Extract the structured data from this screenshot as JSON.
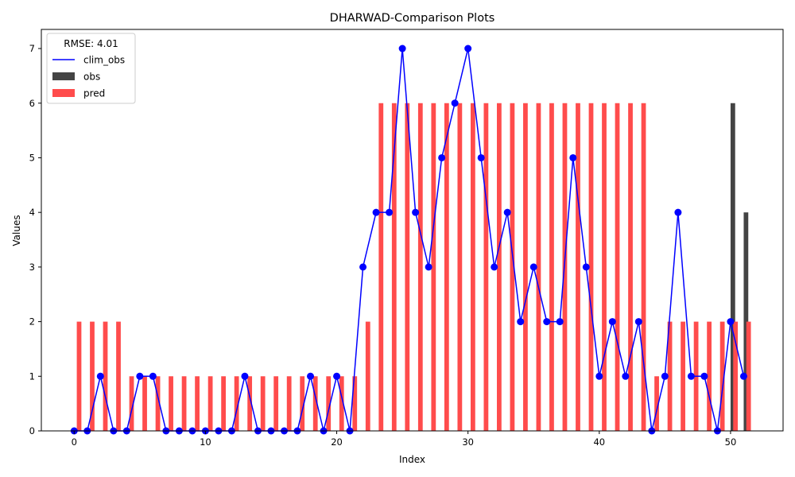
{
  "chart_data": {
    "type": "bar",
    "title": "DHARWAD-Comparison Plots",
    "xlabel": "Index",
    "ylabel": "Values",
    "xlim": [
      -2.5,
      54
    ],
    "ylim": [
      0,
      7.35
    ],
    "x_ticks": [
      0,
      10,
      20,
      30,
      40,
      50
    ],
    "y_ticks": [
      0,
      1,
      2,
      3,
      4,
      5,
      6,
      7
    ],
    "grid": false,
    "legend": {
      "title": "RMSE: 4.01",
      "placement": "top-left",
      "entries": [
        "clim_obs",
        "obs",
        "pred"
      ]
    },
    "x": [
      0,
      1,
      2,
      3,
      4,
      5,
      6,
      7,
      8,
      9,
      10,
      11,
      12,
      13,
      14,
      15,
      16,
      17,
      18,
      19,
      20,
      21,
      22,
      23,
      24,
      25,
      26,
      27,
      28,
      29,
      30,
      31,
      32,
      33,
      34,
      35,
      36,
      37,
      38,
      39,
      40,
      41,
      42,
      43,
      44,
      45,
      46,
      47,
      48,
      49,
      50,
      51
    ],
    "series": [
      {
        "name": "clim_obs",
        "type": "line",
        "color": "#0000ff",
        "values": [
          0,
          0,
          1,
          0,
          0,
          1,
          1,
          0,
          0,
          0,
          0,
          0,
          0,
          1,
          0,
          0,
          0,
          0,
          1,
          0,
          1,
          0,
          3,
          4,
          4,
          7,
          4,
          3,
          5,
          6,
          7,
          5,
          3,
          4,
          2,
          3,
          2,
          2,
          5,
          3,
          1,
          2,
          1,
          2,
          0,
          1,
          4,
          1,
          1,
          0,
          2,
          1
        ]
      },
      {
        "name": "obs",
        "type": "bar",
        "color": "#444444",
        "values": [
          0,
          0,
          0,
          0,
          0,
          0,
          0,
          0,
          0,
          0,
          0,
          0,
          0,
          0,
          0,
          0,
          0,
          0,
          0,
          0,
          0,
          0,
          0,
          0,
          0,
          0,
          0,
          0,
          0,
          0,
          0,
          0,
          0,
          0,
          0,
          0,
          0,
          0,
          0,
          0,
          0,
          0,
          0,
          0,
          0,
          0,
          0,
          0,
          0,
          0,
          6,
          4
        ]
      },
      {
        "name": "pred",
        "type": "bar",
        "color": "#ff4c4c",
        "values": [
          2,
          2,
          2,
          2,
          1,
          1,
          1,
          1,
          1,
          1,
          1,
          1,
          1,
          1,
          1,
          1,
          1,
          1,
          1,
          1,
          1,
          1,
          2,
          6,
          6,
          6,
          6,
          6,
          6,
          6,
          6,
          6,
          6,
          6,
          6,
          6,
          6,
          6,
          6,
          6,
          6,
          6,
          6,
          6,
          1,
          2,
          2,
          2,
          2,
          2,
          2,
          2
        ]
      }
    ]
  }
}
